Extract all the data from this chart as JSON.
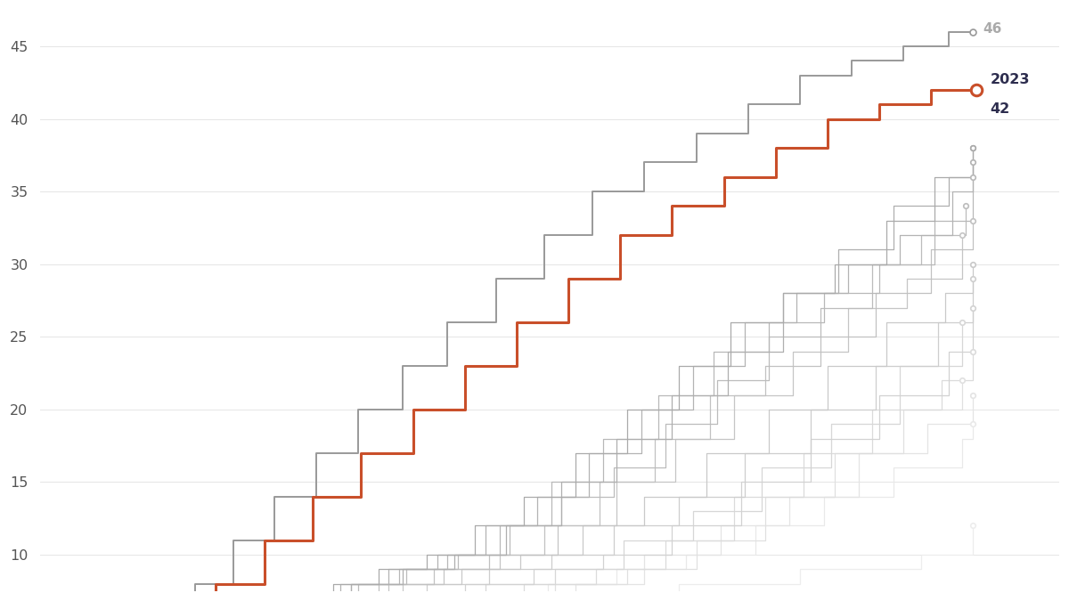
{
  "background_color": "#ffffff",
  "grid_color": "#e5e5e5",
  "year_2023_color": "#c94f2a",
  "ylim": [
    7.5,
    47.5
  ],
  "xlim": [
    95,
    390
  ],
  "yticks": [
    10,
    15,
    20,
    25,
    30,
    35,
    40,
    45
  ],
  "label_2022_color": "#aaaaaa",
  "label_2023_color": "#2d2d4e",
  "years": {
    "2006": {
      "final": 12,
      "days": [
        110,
        125,
        145,
        165,
        190,
        215,
        245,
        280,
        315,
        350,
        365
      ],
      "counts": [
        1,
        2,
        3,
        4,
        5,
        6,
        7,
        8,
        9,
        10,
        12
      ]
    },
    "2007": {
      "final": 19,
      "days": [
        105,
        120,
        140,
        158,
        178,
        198,
        220,
        242,
        262,
        282,
        302,
        322,
        342,
        362,
        365
      ],
      "counts": [
        1,
        2,
        3,
        4,
        5,
        6,
        7,
        8,
        9,
        10,
        12,
        14,
        16,
        18,
        19
      ]
    },
    "2008": {
      "final": 21,
      "days": [
        108,
        125,
        145,
        165,
        185,
        205,
        228,
        250,
        270,
        292,
        312,
        332,
        352,
        365
      ],
      "counts": [
        1,
        2,
        3,
        4,
        5,
        6,
        7,
        8,
        10,
        12,
        14,
        17,
        19,
        21
      ]
    },
    "2009": {
      "final": 22,
      "days": [
        105,
        122,
        142,
        162,
        182,
        202,
        222,
        244,
        265,
        285,
        305,
        325,
        345,
        362
      ],
      "counts": [
        1,
        2,
        3,
        4,
        5,
        6,
        7,
        8,
        9,
        11,
        14,
        17,
        20,
        22
      ]
    },
    "2010": {
      "final": 24,
      "days": [
        102,
        118,
        136,
        155,
        175,
        195,
        215,
        235,
        256,
        276,
        296,
        316,
        336,
        356,
        365
      ],
      "counts": [
        1,
        2,
        3,
        4,
        5,
        6,
        7,
        8,
        9,
        11,
        14,
        17,
        20,
        22,
        24
      ]
    },
    "2011": {
      "final": 26,
      "days": [
        100,
        116,
        132,
        150,
        168,
        186,
        204,
        224,
        244,
        264,
        284,
        304,
        324,
        344,
        362
      ],
      "counts": [
        1,
        2,
        3,
        4,
        5,
        6,
        7,
        8,
        9,
        11,
        13,
        16,
        19,
        23,
        26
      ]
    },
    "2012": {
      "final": 27,
      "days": [
        100,
        115,
        130,
        147,
        165,
        183,
        200,
        218,
        238,
        258,
        278,
        298,
        318,
        338,
        358,
        365
      ],
      "counts": [
        1,
        2,
        3,
        4,
        5,
        6,
        7,
        8,
        9,
        10,
        12,
        15,
        18,
        21,
        24,
        27
      ]
    },
    "2013": {
      "final": 29,
      "days": [
        100,
        114,
        128,
        143,
        158,
        174,
        190,
        207,
        225,
        243,
        261,
        280,
        299,
        318,
        337,
        355,
        365
      ],
      "counts": [
        1,
        2,
        3,
        4,
        5,
        6,
        7,
        8,
        9,
        10,
        12,
        14,
        17,
        20,
        23,
        26,
        29
      ]
    },
    "2014": {
      "final": 30,
      "days": [
        100,
        113,
        126,
        140,
        154,
        169,
        184,
        200,
        217,
        234,
        252,
        270,
        288,
        306,
        323,
        340,
        357,
        365
      ],
      "counts": [
        1,
        2,
        3,
        4,
        5,
        6,
        7,
        8,
        9,
        10,
        12,
        14,
        17,
        20,
        23,
        26,
        28,
        30
      ]
    },
    "2015": {
      "final": 32,
      "days": [
        100,
        112,
        124,
        137,
        151,
        165,
        180,
        196,
        212,
        228,
        245,
        262,
        279,
        296,
        313,
        329,
        346,
        362
      ],
      "counts": [
        1,
        2,
        3,
        4,
        5,
        6,
        7,
        8,
        9,
        10,
        12,
        15,
        18,
        21,
        24,
        27,
        29,
        32
      ]
    },
    "2016": {
      "final": 33,
      "days": [
        100,
        112,
        124,
        136,
        149,
        163,
        178,
        193,
        209,
        225,
        241,
        257,
        273,
        289,
        305,
        321,
        337,
        353,
        365
      ],
      "counts": [
        1,
        2,
        3,
        4,
        5,
        6,
        7,
        8,
        9,
        10,
        12,
        15,
        18,
        21,
        23,
        25,
        28,
        31,
        33
      ]
    },
    "2017": {
      "final": 34,
      "days": [
        100,
        111,
        123,
        135,
        147,
        160,
        173,
        187,
        201,
        216,
        231,
        246,
        261,
        276,
        291,
        306,
        321,
        336,
        350,
        363
      ],
      "counts": [
        1,
        2,
        3,
        4,
        5,
        6,
        7,
        8,
        9,
        10,
        12,
        14,
        16,
        19,
        22,
        25,
        27,
        30,
        32,
        34
      ]
    },
    "2018": {
      "final": 36,
      "days": [
        100,
        111,
        122,
        134,
        146,
        159,
        172,
        185,
        199,
        213,
        228,
        243,
        258,
        274,
        290,
        306,
        322,
        338,
        354,
        365
      ],
      "counts": [
        1,
        2,
        3,
        4,
        5,
        6,
        7,
        8,
        9,
        10,
        12,
        15,
        18,
        21,
        24,
        26,
        28,
        30,
        33,
        36
      ]
    },
    "2019": {
      "final": 37,
      "days": [
        100,
        110,
        121,
        132,
        144,
        156,
        169,
        182,
        196,
        210,
        224,
        239,
        254,
        269,
        284,
        299,
        314,
        329,
        344,
        359,
        365
      ],
      "counts": [
        1,
        2,
        3,
        4,
        5,
        6,
        7,
        8,
        9,
        10,
        12,
        14,
        17,
        20,
        23,
        26,
        28,
        30,
        32,
        35,
        37
      ]
    },
    "2020": {
      "final": 38,
      "days": [
        100,
        110,
        121,
        132,
        144,
        157,
        171,
        185,
        200,
        215,
        230,
        246,
        262,
        278,
        294,
        310,
        326,
        342,
        358,
        365
      ],
      "counts": [
        1,
        2,
        3,
        4,
        5,
        6,
        7,
        8,
        9,
        10,
        12,
        15,
        18,
        21,
        24,
        28,
        31,
        34,
        36,
        38
      ]
    },
    "2021": {
      "final": 38,
      "days": [
        100,
        110,
        120,
        131,
        142,
        154,
        167,
        180,
        193,
        207,
        221,
        235,
        250,
        265,
        280,
        295,
        310,
        325,
        340,
        354,
        365
      ],
      "counts": [
        1,
        2,
        3,
        4,
        5,
        6,
        7,
        8,
        9,
        10,
        12,
        14,
        17,
        20,
        23,
        26,
        28,
        30,
        33,
        36,
        38
      ]
    },
    "2022": {
      "final": 46,
      "days": [
        100,
        109,
        119,
        129,
        140,
        151,
        163,
        175,
        187,
        200,
        213,
        227,
        241,
        255,
        270,
        285,
        300,
        315,
        330,
        345,
        358,
        365
      ],
      "counts": [
        1,
        2,
        3,
        5,
        8,
        11,
        14,
        17,
        20,
        23,
        26,
        29,
        32,
        35,
        37,
        39,
        41,
        43,
        44,
        45,
        46,
        46
      ]
    },
    "2023": {
      "final": 42,
      "days": [
        108,
        120,
        133,
        146,
        160,
        174,
        188,
        203,
        218,
        233,
        248,
        263,
        278,
        293,
        308,
        323,
        338,
        353,
        366
      ],
      "counts": [
        1,
        3,
        5,
        8,
        11,
        14,
        17,
        20,
        23,
        26,
        29,
        32,
        34,
        36,
        38,
        40,
        41,
        42,
        42
      ]
    }
  }
}
